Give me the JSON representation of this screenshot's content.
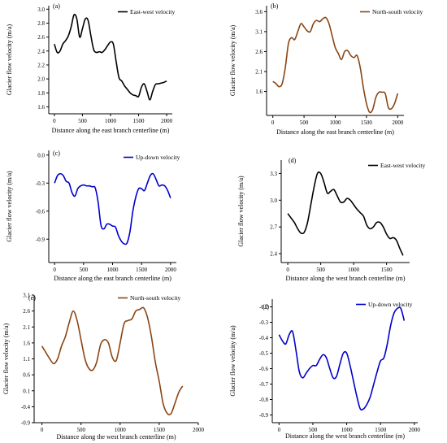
{
  "chart_data": [
    {
      "type": "line",
      "panel_label": "(a)",
      "legend": "East-west velocity",
      "color": "#000000",
      "xlabel": "Distance along the east branch centerline (m)",
      "ylabel": "Glacier flow velocity (m/a)",
      "xticks": [
        0,
        500,
        1000,
        1500,
        2000
      ],
      "yticks": [
        "1.6",
        "1.8",
        "2.0",
        "2.2",
        "2.4",
        "2.6",
        "2.8",
        "3.0"
      ],
      "xlim": [
        -100,
        2100
      ],
      "ylim": [
        1.5,
        3.05
      ],
      "legend_position": "top-right",
      "x": [
        0,
        50,
        100,
        150,
        200,
        250,
        300,
        350,
        400,
        450,
        500,
        550,
        600,
        650,
        700,
        750,
        800,
        850,
        900,
        950,
        1000,
        1050,
        1100,
        1150,
        1200,
        1250,
        1300,
        1350,
        1400,
        1450,
        1500,
        1550,
        1600,
        1650,
        1700,
        1750,
        1800,
        1850,
        1900,
        1950,
        2000
      ],
      "y": [
        2.5,
        2.38,
        2.4,
        2.5,
        2.55,
        2.62,
        2.75,
        2.92,
        2.86,
        2.6,
        2.72,
        2.86,
        2.84,
        2.62,
        2.42,
        2.38,
        2.39,
        2.38,
        2.42,
        2.48,
        2.53,
        2.5,
        2.25,
        2.02,
        1.97,
        1.9,
        1.85,
        1.8,
        1.77,
        1.76,
        1.75,
        1.88,
        1.93,
        1.82,
        1.7,
        1.82,
        1.92,
        1.93,
        1.94,
        1.95,
        1.97
      ]
    },
    {
      "type": "line",
      "panel_label": "(b)",
      "legend": "North-south velocity",
      "color": "#8B4513",
      "xlabel": "Distance along the east branch centerline (m)",
      "ylabel": "Glacier flow velocity (m/a)",
      "xticks": [
        0,
        500,
        1000,
        1500,
        2000
      ],
      "yticks": [
        "1.6",
        "2.1",
        "2.6",
        "3.1",
        "3.6"
      ],
      "xlim": [
        -100,
        2100
      ],
      "ylim": [
        1.0,
        3.75
      ],
      "legend_position": "top-right",
      "x": [
        0,
        50,
        100,
        150,
        200,
        250,
        300,
        350,
        400,
        450,
        500,
        550,
        600,
        650,
        700,
        750,
        800,
        850,
        900,
        950,
        1000,
        1050,
        1100,
        1150,
        1200,
        1250,
        1300,
        1350,
        1400,
        1450,
        1500,
        1550,
        1600,
        1650,
        1700,
        1750,
        1800,
        1850,
        1900,
        1950,
        2000
      ],
      "y": [
        1.85,
        1.8,
        1.72,
        1.8,
        2.2,
        2.8,
        2.95,
        2.9,
        3.1,
        3.3,
        3.22,
        3.12,
        3.1,
        3.3,
        3.38,
        3.35,
        3.42,
        3.45,
        3.3,
        3.0,
        2.7,
        2.55,
        2.4,
        2.6,
        2.62,
        2.5,
        2.45,
        2.5,
        2.2,
        1.7,
        1.3,
        1.08,
        1.15,
        1.45,
        1.58,
        1.58,
        1.55,
        1.2,
        1.17,
        1.3,
        1.55
      ]
    },
    {
      "type": "line",
      "panel_label": "(c)",
      "legend": "Up-down velocity",
      "color": "#0000CC",
      "xlabel": "Distance along the east branch centerline (m)",
      "ylabel": "Glacier flow velocity (m/a)",
      "xticks": [
        0,
        500,
        1000,
        1500,
        2000
      ],
      "yticks": [
        "-0.9",
        "-0.6",
        "-0.3",
        "0.0"
      ],
      "xlim": [
        -100,
        2100
      ],
      "ylim": [
        -1.15,
        0.05
      ],
      "legend_position": "top-right",
      "x": [
        0,
        50,
        100,
        150,
        200,
        250,
        300,
        350,
        400,
        450,
        500,
        550,
        600,
        650,
        700,
        750,
        800,
        850,
        900,
        950,
        1000,
        1050,
        1100,
        1150,
        1200,
        1250,
        1300,
        1350,
        1400,
        1450,
        1500,
        1550,
        1600,
        1650,
        1700,
        1750,
        1800,
        1850,
        1900,
        1950,
        2000
      ],
      "y": [
        -0.3,
        -0.22,
        -0.2,
        -0.22,
        -0.28,
        -0.3,
        -0.4,
        -0.44,
        -0.36,
        -0.33,
        -0.32,
        -0.33,
        -0.33,
        -0.34,
        -0.35,
        -0.5,
        -0.75,
        -0.79,
        -0.74,
        -0.74,
        -0.76,
        -0.77,
        -0.86,
        -0.92,
        -0.95,
        -0.94,
        -0.82,
        -0.6,
        -0.45,
        -0.36,
        -0.36,
        -0.38,
        -0.3,
        -0.22,
        -0.2,
        -0.26,
        -0.33,
        -0.32,
        -0.33,
        -0.38,
        -0.46
      ]
    },
    {
      "type": "line",
      "panel_label": "(d)",
      "legend": "East-west velocity",
      "color": "#000000",
      "xlabel": "Distance along the west branch centerline (m)",
      "ylabel": "Glacier flow velocity (m/a)",
      "xticks": [
        0,
        500,
        1000,
        1500
      ],
      "yticks": [
        "2.4",
        "2.7",
        "3.0",
        "3.3"
      ],
      "xlim": [
        -100,
        1850
      ],
      "ylim": [
        2.3,
        3.45
      ],
      "legend_position": "top-right",
      "x": [
        0,
        50,
        100,
        150,
        200,
        250,
        300,
        350,
        400,
        450,
        500,
        550,
        600,
        650,
        700,
        750,
        800,
        850,
        900,
        950,
        1000,
        1050,
        1100,
        1150,
        1200,
        1250,
        1300,
        1350,
        1400,
        1450,
        1500,
        1550,
        1600,
        1650,
        1700,
        1750
      ],
      "y": [
        2.85,
        2.8,
        2.75,
        2.68,
        2.63,
        2.64,
        2.75,
        2.95,
        3.15,
        3.3,
        3.3,
        3.2,
        3.08,
        3.1,
        3.12,
        3.05,
        2.98,
        2.98,
        3.02,
        3.0,
        2.95,
        2.9,
        2.86,
        2.82,
        2.72,
        2.68,
        2.7,
        2.75,
        2.75,
        2.7,
        2.62,
        2.57,
        2.58,
        2.55,
        2.46,
        2.38
      ]
    },
    {
      "type": "line",
      "panel_label": "(e)",
      "legend": "North-south velocity",
      "color": "#8B4513",
      "xlabel": "Distance along the west branch centerline (m)",
      "ylabel": "Glacier flow velocity (m/a)",
      "xticks": [
        0,
        500,
        1000,
        1500,
        2000
      ],
      "yticks": [
        "-0.9",
        "-0.4",
        "0.1",
        "0.6",
        "1.1",
        "1.6",
        "2.1",
        "2.6",
        "3.1"
      ],
      "xlim": [
        -100,
        2000
      ],
      "ylim": [
        -0.9,
        3.1
      ],
      "legend_position": "top-right",
      "x": [
        0,
        50,
        100,
        150,
        200,
        250,
        300,
        350,
        400,
        450,
        500,
        550,
        600,
        650,
        700,
        750,
        800,
        850,
        900,
        950,
        1000,
        1050,
        1100,
        1150,
        1200,
        1250,
        1300,
        1350,
        1400,
        1450,
        1500,
        1550,
        1600,
        1650,
        1700,
        1750,
        1800
      ],
      "y": [
        1.5,
        1.3,
        1.1,
        0.95,
        1.1,
        1.5,
        1.8,
        2.25,
        2.6,
        2.3,
        1.7,
        1.1,
        0.8,
        0.75,
        1.0,
        1.55,
        1.7,
        1.6,
        1.15,
        1.05,
        1.6,
        2.2,
        2.3,
        2.35,
        2.6,
        2.65,
        2.7,
        2.4,
        1.8,
        1.0,
        0.4,
        -0.3,
        -0.6,
        -0.62,
        -0.3,
        0.05,
        0.25
      ]
    },
    {
      "type": "line",
      "panel_label": "(f)",
      "legend": "Up-down velocity",
      "color": "#0000CC",
      "xlabel": "Distance along the west branch centerline (m)",
      "ylabel": "Glacier flow velocity (m/a)",
      "xticks": [
        0,
        500,
        1000,
        1500,
        2000
      ],
      "yticks": [
        "-0.9",
        "-0.8",
        "-0.7",
        "-0.6",
        "-0.5",
        "-0.4",
        "-0.3",
        "-0.2"
      ],
      "xlim": [
        -100,
        2050
      ],
      "ylim": [
        -0.95,
        -0.15
      ],
      "legend_position": "top-right",
      "x": [
        0,
        50,
        100,
        150,
        200,
        250,
        300,
        350,
        400,
        450,
        500,
        550,
        600,
        650,
        700,
        750,
        800,
        850,
        900,
        950,
        1000,
        1050,
        1100,
        1150,
        1200,
        1250,
        1300,
        1350,
        1400,
        1450,
        1500,
        1550,
        1600,
        1650,
        1700,
        1750,
        1800,
        1850
      ],
      "y": [
        -0.38,
        -0.42,
        -0.44,
        -0.38,
        -0.36,
        -0.48,
        -0.62,
        -0.66,
        -0.63,
        -0.6,
        -0.58,
        -0.58,
        -0.54,
        -0.51,
        -0.53,
        -0.6,
        -0.66,
        -0.65,
        -0.57,
        -0.5,
        -0.5,
        -0.58,
        -0.68,
        -0.78,
        -0.86,
        -0.86,
        -0.83,
        -0.78,
        -0.7,
        -0.62,
        -0.55,
        -0.53,
        -0.44,
        -0.32,
        -0.24,
        -0.21,
        -0.21,
        -0.29
      ]
    }
  ]
}
